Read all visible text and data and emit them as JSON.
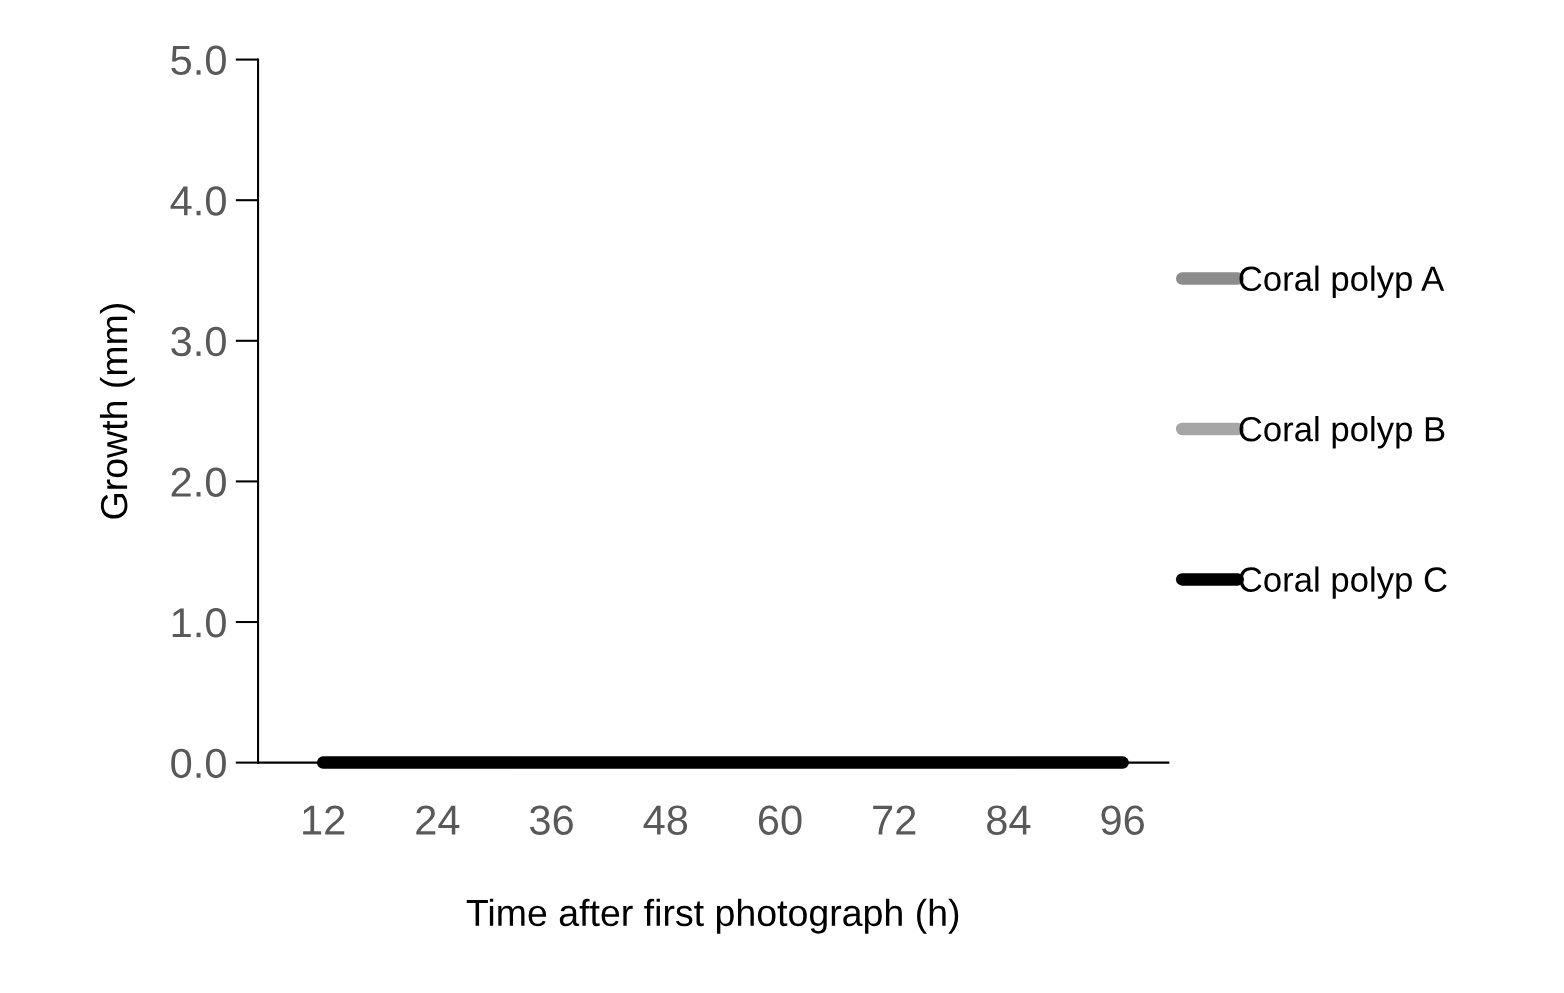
{
  "chart_data": {
    "type": "line",
    "xlabel": "Time after first photograph (h)",
    "ylabel": "Growth (mm)",
    "categories": [
      "12",
      "24",
      "36",
      "48",
      "60",
      "72",
      "84",
      "96"
    ],
    "series": [
      {
        "name": "Coral polyp A",
        "color": "#8c8c8c",
        "values": [
          null,
          null,
          null,
          null,
          null,
          null,
          null,
          null
        ]
      },
      {
        "name": "Coral polyp B",
        "color": "#a6a6a6",
        "values": [
          null,
          null,
          null,
          null,
          null,
          null,
          null,
          null
        ]
      },
      {
        "name": "Coral polyp C",
        "color": "#000000",
        "values": [
          0,
          0,
          0,
          0,
          0,
          0,
          0,
          0
        ]
      }
    ],
    "ylim": [
      0,
      5
    ],
    "yticks": [
      {
        "value": 0,
        "label": "0.0"
      },
      {
        "value": 1,
        "label": "1.0"
      },
      {
        "value": 2,
        "label": "2.0"
      },
      {
        "value": 3,
        "label": "3.0"
      },
      {
        "value": 4,
        "label": "4.0"
      },
      {
        "value": 5,
        "label": "5.0"
      }
    ],
    "grid": false,
    "legend": "right",
    "line_style": "solid"
  }
}
